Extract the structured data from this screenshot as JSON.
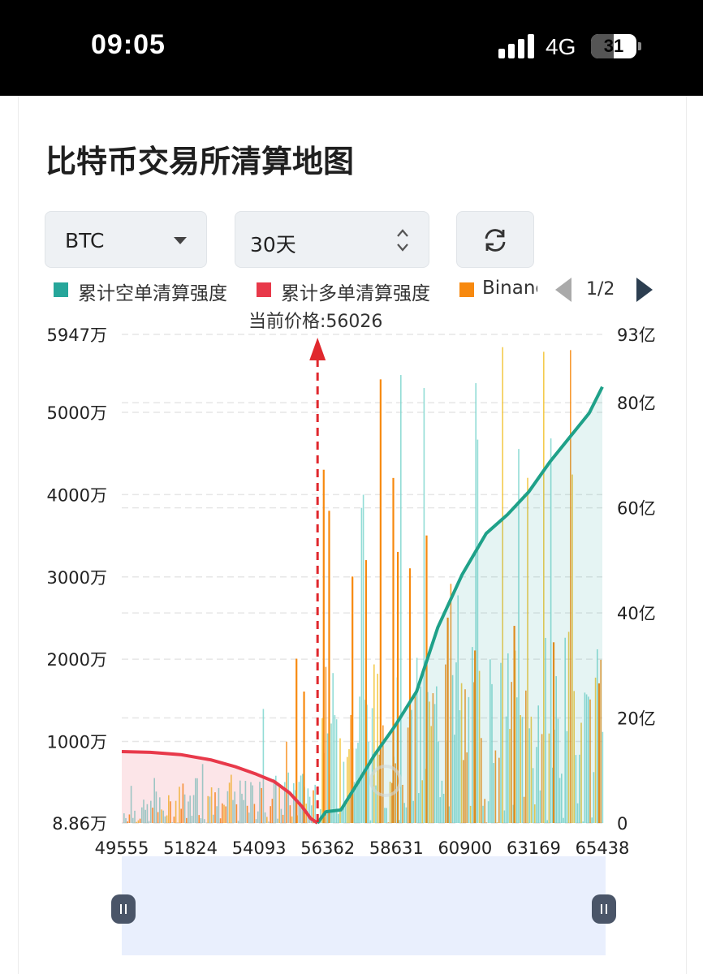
{
  "status": {
    "time": "09:05",
    "network": "4G",
    "battery": "31"
  },
  "title": "比特币交易所清算地图",
  "controls": {
    "coin": "BTC",
    "period": "30天"
  },
  "legend": {
    "items": [
      {
        "label": "累计空单清算强度",
        "color": "#26a69a"
      },
      {
        "label": "累计多单清算强度",
        "color": "#e8394a"
      },
      {
        "label": "Binance",
        "color": "#f7890f"
      }
    ],
    "page": "1/2"
  },
  "colors": {
    "bar_teal": "#7fd6cf",
    "bar_orange": "#f7890f",
    "bar_yellow": "#f2c230",
    "price_marker": "#e0282d",
    "zoom_band": "#e9effd"
  },
  "chart_data": {
    "type": "bar",
    "current_price_label": "当前价格:56026",
    "current_price": 56026,
    "xlim": [
      49555,
      65438
    ],
    "x_ticks": [
      "49555",
      "51824",
      "54093",
      "56362",
      "58631",
      "60900",
      "63169",
      "65438"
    ],
    "y_left": {
      "ticks": [
        "8.86万",
        "1000万",
        "2000万",
        "3000万",
        "4000万",
        "5000万",
        "5947万"
      ],
      "ylim": [
        88600,
        59470000
      ]
    },
    "y_right": {
      "ticks": [
        "0",
        "20亿",
        "40亿",
        "60亿",
        "80亿",
        "93亿"
      ],
      "ylim": [
        0,
        9300000000
      ]
    },
    "series": [
      {
        "name": "累计多单清算强度",
        "type": "area",
        "x": [
          49555,
          50500,
          51500,
          52500,
          53300,
          54000,
          54600,
          55100,
          55500,
          55800,
          56026
        ],
        "values": [
          1.9,
          1.88,
          1.82,
          1.68,
          1.5,
          1.3,
          1.1,
          0.8,
          0.45,
          0.12,
          0
        ]
      },
      {
        "name": "累计空单清算强度",
        "type": "area",
        "x": [
          56026,
          56300,
          56800,
          57300,
          57900,
          58600,
          59300,
          60000,
          60800,
          61600,
          62300,
          63000,
          63700,
          64400,
          65000,
          65438
        ],
        "values": [
          0,
          0.3,
          0.35,
          1.0,
          1.8,
          2.6,
          3.5,
          5.2,
          6.6,
          7.7,
          8.2,
          8.8,
          9.6,
          10.3,
          10.9,
          11.6
        ]
      },
      {
        "name": "Binance",
        "type": "bar",
        "x": [
          55300,
          55550,
          56200,
          56380,
          57150,
          57600,
          58080,
          58500,
          58650,
          59050,
          59600,
          60300,
          61200,
          62500,
          63800,
          65300
        ],
        "values": [
          2000,
          1600,
          4300,
          3800,
          3000,
          3200,
          5400,
          4200,
          3300,
          3100,
          3500,
          2500,
          2100,
          2400,
          2200,
          1700
        ]
      }
    ]
  }
}
